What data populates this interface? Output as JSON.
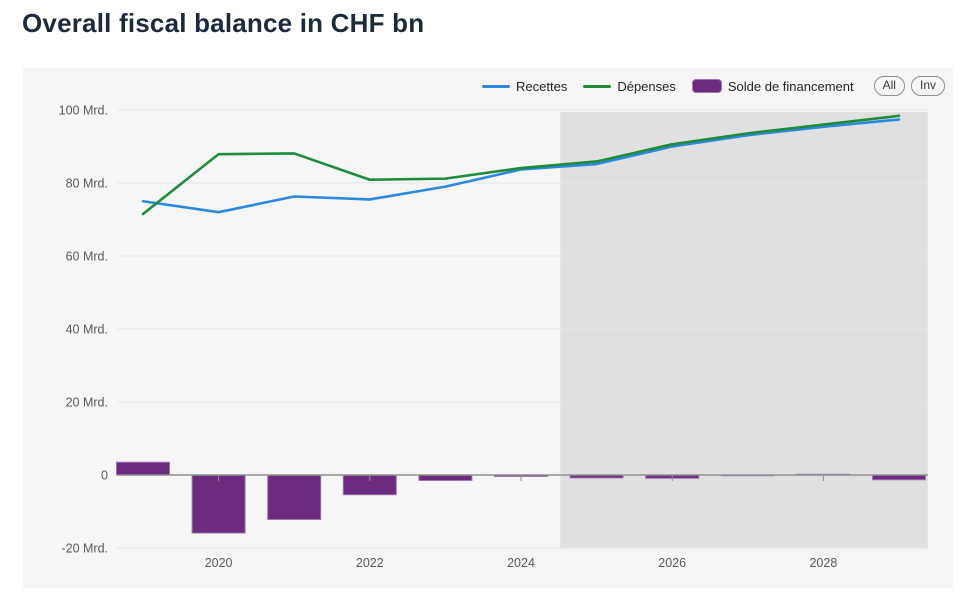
{
  "page": {
    "title": "Overall fiscal balance in CHF bn"
  },
  "legend": {
    "items": [
      {
        "label": "Recettes",
        "swatch": "line",
        "color": "#2b89e0"
      },
      {
        "label": "Dépenses",
        "swatch": "line",
        "color": "#1e8c3a"
      },
      {
        "label": "Solde de financement",
        "swatch": "box",
        "color": "#6c2b7f"
      }
    ],
    "buttons": [
      {
        "label": "All"
      },
      {
        "label": "Inv"
      }
    ]
  },
  "chart_data": {
    "type": "combo",
    "title": "Overall fiscal balance in CHF bn",
    "x": [
      2019,
      2020,
      2021,
      2022,
      2023,
      2024,
      2025,
      2026,
      2027,
      2028,
      2029
    ],
    "series": [
      {
        "name": "Recettes",
        "type": "line",
        "color": "#2b89e0",
        "values": [
          75,
          72,
          76.3,
          75.5,
          79,
          83.7,
          85.2,
          90,
          93.1,
          95.4,
          97.4
        ]
      },
      {
        "name": "Dépenses",
        "type": "line",
        "color": "#1e8c3a",
        "values": [
          71.5,
          87.9,
          88.1,
          80.9,
          81.2,
          84.1,
          85.9,
          90.6,
          93.6,
          96,
          98.4
        ]
      },
      {
        "name": "Solde de financement",
        "type": "bar",
        "color": "#6c2b7f",
        "border_color": "#9c73ab",
        "values": [
          3.5,
          -15.9,
          -12.2,
          -5.4,
          -1.5,
          -0.4,
          -0.8,
          -0.9,
          -0.2,
          0.2,
          -1.3
        ]
      }
    ],
    "yticks": [
      {
        "v": 100,
        "label": "100 Mrd."
      },
      {
        "v": 80,
        "label": "80 Mrd."
      },
      {
        "v": 60,
        "label": "60 Mrd."
      },
      {
        "v": 40,
        "label": "40 Mrd."
      },
      {
        "v": 20,
        "label": "20 Mrd."
      },
      {
        "v": 0,
        "label": "0"
      },
      {
        "v": -20,
        "label": "-20 Mrd."
      }
    ],
    "xticks": [
      2020,
      2022,
      2024,
      2026,
      2028
    ],
    "ylim": [
      -20,
      100
    ],
    "grid": true,
    "legend_position": "top-right",
    "colors": {
      "panel_bg": "#f6f6f7",
      "forecast_band": "#e0e0e1",
      "gridline": "#e3e5ee",
      "zero_line": "#8f8f8f",
      "axis_text": "#57585c"
    },
    "forecast_region": {
      "from": 2024.52,
      "to": 2029.38
    }
  }
}
